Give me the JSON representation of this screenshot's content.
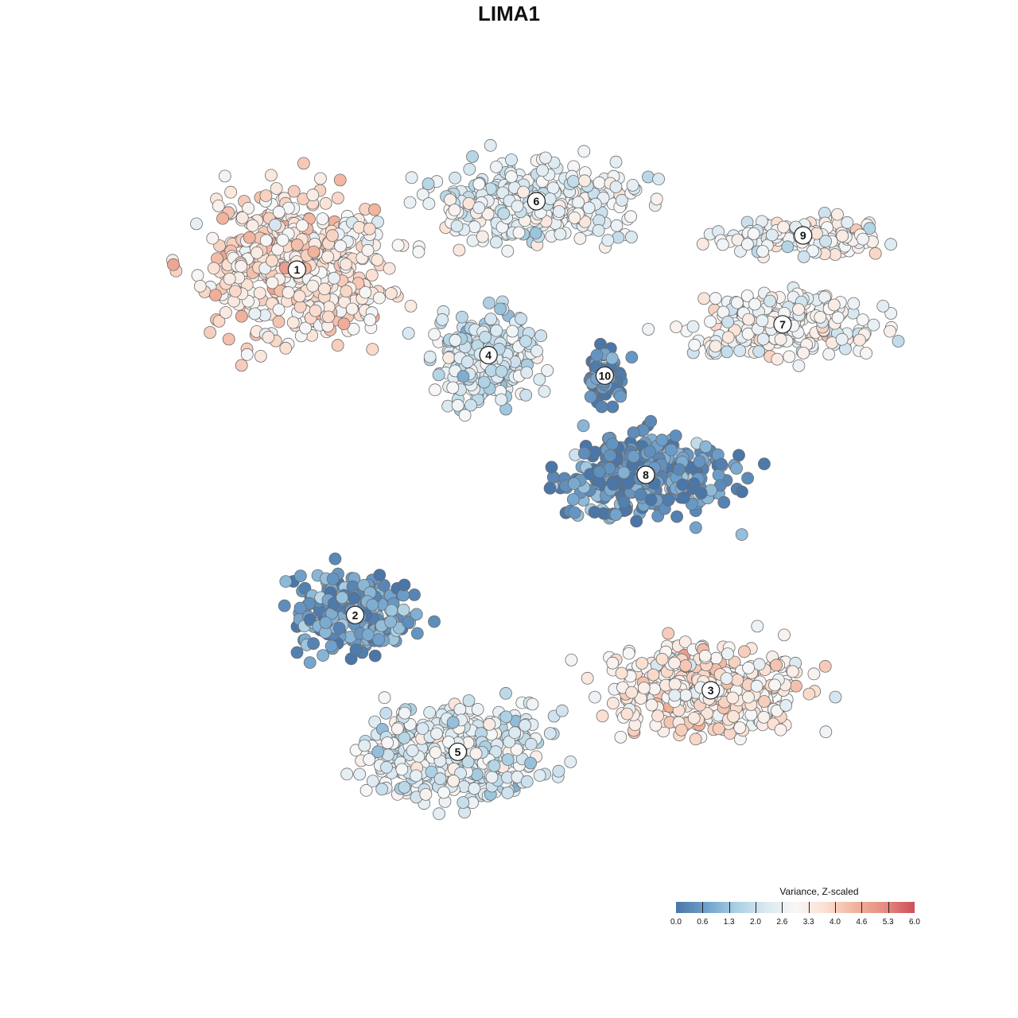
{
  "chart_data": {
    "type": "scatter",
    "title": "LIMA1",
    "colorbar": {
      "label": "Variance, Z-scaled",
      "range": [
        0.0,
        6.0
      ],
      "ticks": [
        "0.0",
        "0.6",
        "1.3",
        "2.0",
        "2.6",
        "3.3",
        "4.0",
        "4.6",
        "5.3",
        "6.0"
      ],
      "palette": [
        "#4a76a8",
        "#6ea0cc",
        "#a9cfe2",
        "#d9e8f1",
        "#f7f7f7",
        "#fbe0d2",
        "#f2b39d",
        "#e58b80",
        "#cc4f59"
      ]
    },
    "clusters": [
      {
        "label": "1",
        "x": -0.62,
        "y": 0.7,
        "mean_z": 3.6
      },
      {
        "label": "2",
        "x": -0.45,
        "y": -0.31,
        "mean_z": 0.6
      },
      {
        "label": "3",
        "x": 0.59,
        "y": -0.53,
        "mean_z": 3.4
      },
      {
        "label": "4",
        "x": -0.06,
        "y": 0.45,
        "mean_z": 2.1
      },
      {
        "label": "5",
        "x": -0.15,
        "y": -0.71,
        "mean_z": 2.4
      },
      {
        "label": "6",
        "x": 0.08,
        "y": 0.9,
        "mean_z": 2.6
      },
      {
        "label": "7",
        "x": 0.8,
        "y": 0.54,
        "mean_z": 2.9
      },
      {
        "label": "8",
        "x": 0.4,
        "y": 0.1,
        "mean_z": 0.5
      },
      {
        "label": "9",
        "x": 0.86,
        "y": 0.8,
        "mean_z": 2.9
      },
      {
        "label": "10",
        "x": 0.28,
        "y": 0.39,
        "mean_z": 0.3
      }
    ],
    "grid": false,
    "legend": "bottom-right"
  }
}
